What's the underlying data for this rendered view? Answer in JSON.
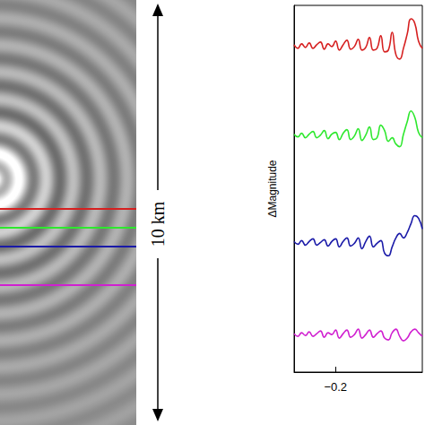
{
  "scale_bar_label": "10 km",
  "chart_data": {
    "type": "line",
    "ylabel": "ΔMagnitude",
    "x": [
      -0.255,
      -0.25,
      -0.245,
      -0.24,
      -0.235,
      -0.23,
      -0.225,
      -0.22,
      -0.215,
      -0.21,
      -0.205,
      -0.2,
      -0.195,
      -0.19,
      -0.185,
      -0.18,
      -0.175,
      -0.17,
      -0.165,
      -0.16,
      -0.155,
      -0.15,
      -0.145,
      -0.14,
      -0.135,
      -0.13,
      -0.125,
      -0.12,
      -0.115,
      -0.11,
      -0.105,
      -0.1,
      -0.095,
      -0.09,
      -0.085
    ],
    "series": [
      {
        "color": "#d62020",
        "values": [
          3.66,
          3.62,
          3.67,
          3.63,
          3.68,
          3.62,
          3.66,
          3.69,
          3.61,
          3.67,
          3.64,
          3.7,
          3.6,
          3.66,
          3.71,
          3.61,
          3.64,
          3.72,
          3.6,
          3.63,
          3.74,
          3.6,
          3.62,
          3.76,
          3.58,
          3.6,
          3.8,
          3.55,
          3.5,
          3.62,
          3.78,
          3.95,
          3.9,
          3.7,
          3.62
        ]
      },
      {
        "color": "#2ee82e",
        "values": [
          2.66,
          2.63,
          2.67,
          2.62,
          2.66,
          2.69,
          2.62,
          2.65,
          2.7,
          2.61,
          2.66,
          2.68,
          2.6,
          2.67,
          2.71,
          2.6,
          2.64,
          2.72,
          2.59,
          2.65,
          2.74,
          2.6,
          2.62,
          2.76,
          2.7,
          2.58,
          2.62,
          2.55,
          2.52,
          2.66,
          2.8,
          2.92,
          2.85,
          2.68,
          2.62
        ]
      },
      {
        "color": "#1a1aa8",
        "values": [
          1.46,
          1.43,
          1.47,
          1.42,
          1.46,
          1.49,
          1.42,
          1.45,
          1.48,
          1.41,
          1.46,
          1.49,
          1.4,
          1.46,
          1.5,
          1.41,
          1.44,
          1.5,
          1.38,
          1.46,
          1.52,
          1.4,
          1.44,
          1.47,
          1.33,
          1.3,
          1.4,
          1.5,
          1.55,
          1.5,
          1.56,
          1.66,
          1.75,
          1.72,
          1.6
        ]
      },
      {
        "color": "#d020d0",
        "values": [
          0.43,
          0.4,
          0.44,
          0.41,
          0.45,
          0.4,
          0.43,
          0.46,
          0.39,
          0.44,
          0.42,
          0.47,
          0.38,
          0.43,
          0.47,
          0.39,
          0.42,
          0.48,
          0.38,
          0.42,
          0.47,
          0.39,
          0.43,
          0.46,
          0.38,
          0.36,
          0.44,
          0.48,
          0.4,
          0.35,
          0.38,
          0.45,
          0.48,
          0.44,
          0.4
        ]
      }
    ],
    "xlim": [
      -0.255,
      -0.085
    ],
    "xticks": [
      {
        "value": -0.2,
        "label": "−0.2"
      }
    ],
    "ylim": [
      0,
      4.1
    ],
    "yticks": [],
    "tick_labels": "x",
    "grid": false
  }
}
